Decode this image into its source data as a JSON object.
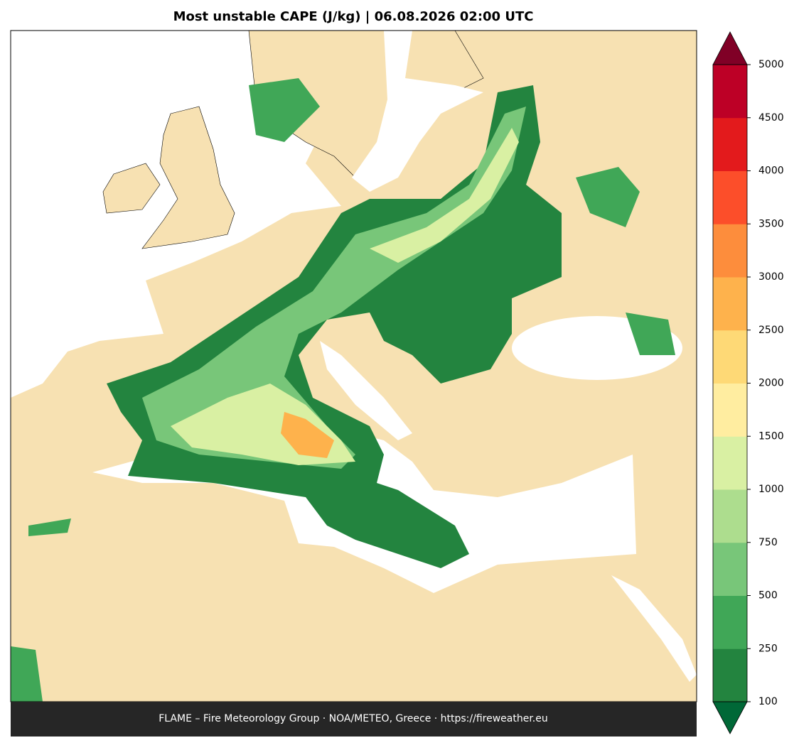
{
  "title": "Most unstable CAPE (J/kg)  |  06.08.2026 02:00 UTC",
  "footer": "FLAME – Fire Meteorology Group · NOA/METEO, Greece · https://fireweather.eu",
  "colorbar": {
    "levels": [
      100,
      250,
      500,
      750,
      1000,
      1500,
      2000,
      2500,
      3000,
      3500,
      4000,
      4500,
      5000
    ],
    "colors": [
      "#23843f",
      "#40a757",
      "#78c679",
      "#addd8e",
      "#d9f0a3",
      "#ffeda0",
      "#fed976",
      "#feb24c",
      "#fd8d3c",
      "#fc4e2a",
      "#e31a1c",
      "#bd0026"
    ],
    "under_color": "#006837",
    "over_color": "#800026"
  }
}
